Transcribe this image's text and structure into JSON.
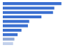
{
  "chart_data": {
    "type": "bar",
    "orientation": "horizontal",
    "categories": [
      null,
      null,
      null,
      null,
      null,
      null,
      null,
      null,
      null,
      null
    ],
    "values": [
      91,
      80,
      78,
      60,
      41,
      39,
      29,
      23,
      18,
      16
    ],
    "colors": [
      "#3a6fd0",
      "#3a6fd0",
      "#3a6fd0",
      "#3a6fd0",
      "#3a6fd0",
      "#3a6fd0",
      "#3a6fd0",
      "#3a6fd0",
      "#8fa8d6",
      "#c3d1ec"
    ],
    "xlim": [
      0,
      100
    ],
    "grid": false,
    "tick_labels": false
  }
}
